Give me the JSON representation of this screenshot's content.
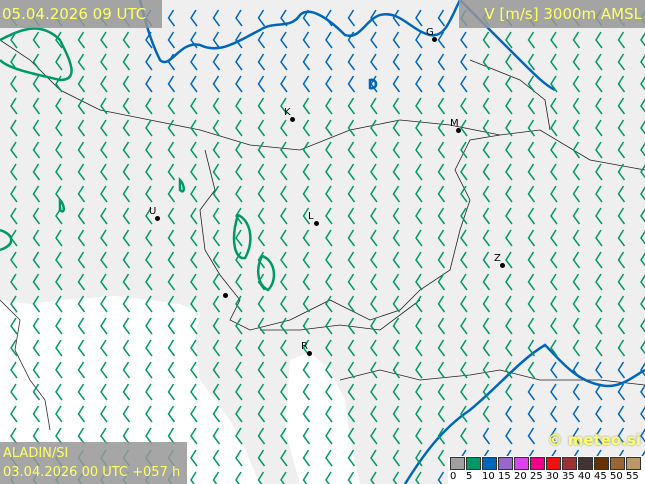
{
  "header": {
    "valid_time": "05.04.2026 09 UTC",
    "field": "V [m/s] 3000m AMSL"
  },
  "footer": {
    "model": "ALADIN/SI",
    "run": "03.04.2026 00 UTC +057 h",
    "copyright": "© meteo.si"
  },
  "legend": {
    "ticks": [
      "0",
      "5",
      "10",
      "15",
      "20",
      "25",
      "30",
      "35",
      "40",
      "45",
      "50",
      "55"
    ],
    "colors": [
      "#a0a0a0",
      "#009966",
      "#0066bb",
      "#9966cc",
      "#dd44ee",
      "#ee0088",
      "#ee1111",
      "#993333",
      "#443333",
      "#663300",
      "#996633",
      "#bb9966"
    ]
  },
  "cities": [
    {
      "label": "G"
    },
    {
      "label": "K"
    },
    {
      "label": "M"
    },
    {
      "label": "U"
    },
    {
      "label": "L"
    },
    {
      "label": "Z"
    },
    {
      "label": "R"
    },
    {
      "label": ""
    }
  ],
  "wind": {
    "direction": "southerly",
    "dominant_class": "5-10 m/s",
    "contour_colors": {
      "5": "#009966",
      "10": "#0066bb"
    }
  }
}
